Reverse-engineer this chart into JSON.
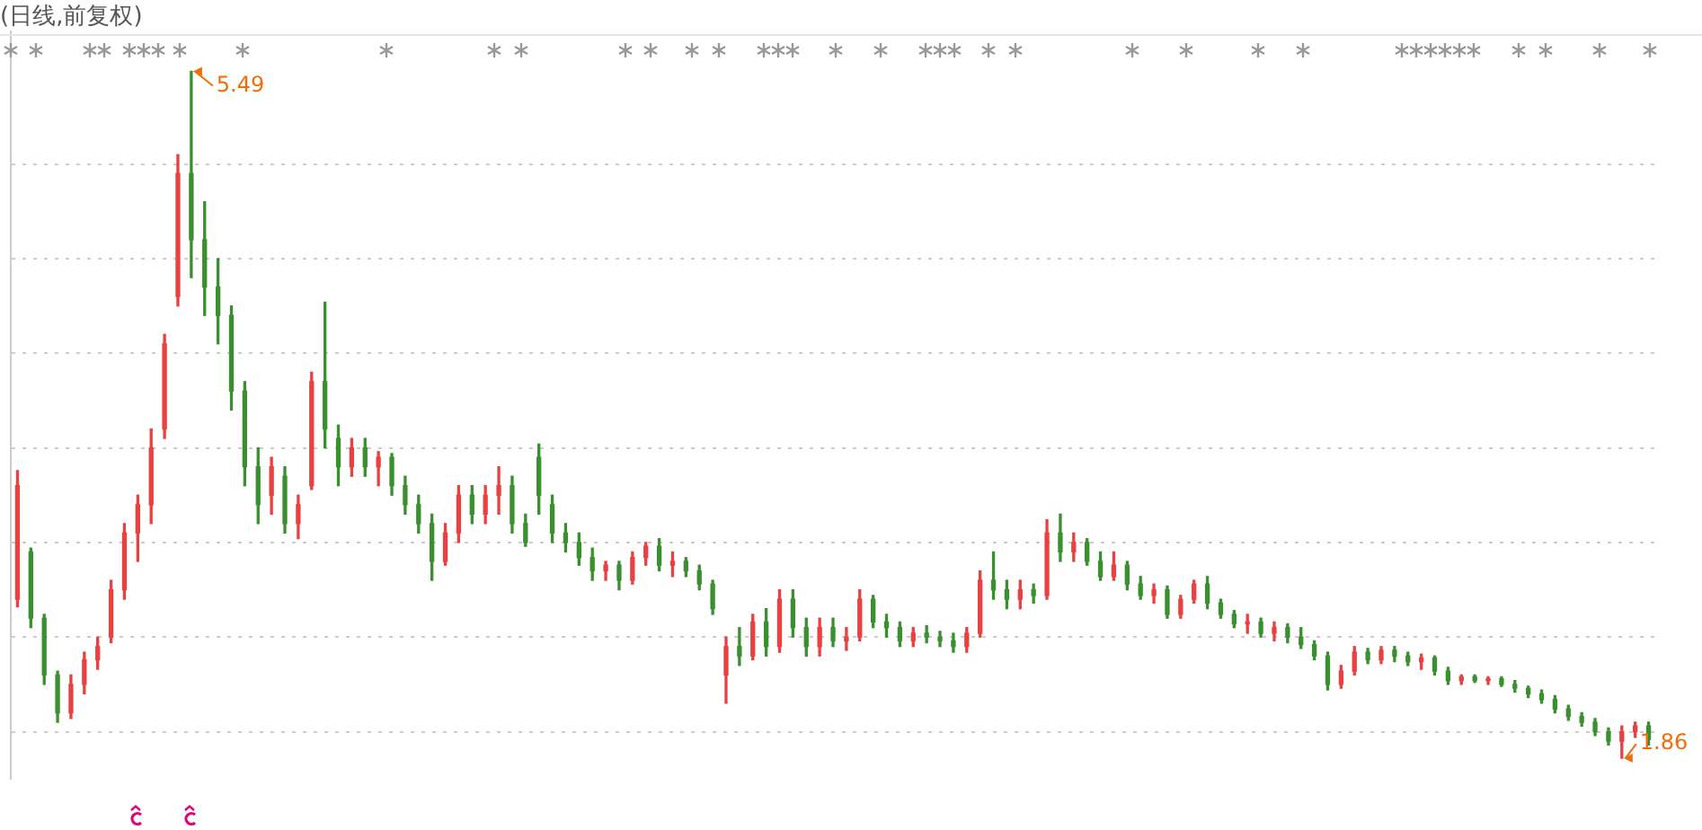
{
  "chart_data": {
    "type": "candlestick",
    "title": "(日线,前复权)",
    "ylim": [
      1.75,
      5.7
    ],
    "yticks": [
      {
        "value": 2,
        "label": null
      },
      {
        "value": 2.5,
        "label": null
      },
      {
        "value": 3,
        "label": null
      },
      {
        "value": 3.5,
        "label": null
      },
      {
        "value": 4,
        "label": null
      },
      {
        "value": 4.5,
        "label": null
      },
      {
        "value": 5,
        "label": null
      }
    ],
    "grid": "y",
    "annotations": [
      "5.49",
      "1.86"
    ],
    "categories": [
      null,
      null,
      null,
      null,
      null,
      null,
      null,
      null,
      null,
      null,
      null,
      null,
      null,
      null,
      null,
      null,
      null,
      null,
      null,
      null,
      null,
      null,
      null,
      null,
      null,
      null,
      null,
      null,
      null,
      null,
      null,
      null,
      null,
      null,
      null,
      null,
      null,
      null,
      null,
      null,
      null,
      null,
      null,
      null,
      null,
      null,
      null,
      null,
      null,
      null,
      null,
      null,
      null,
      null,
      null,
      null,
      null,
      null,
      null,
      null,
      null,
      null,
      null,
      null,
      null,
      null,
      null,
      null,
      null,
      null,
      null,
      null,
      null,
      null,
      null,
      null,
      null,
      null,
      null,
      null,
      null,
      null,
      null,
      null,
      null,
      null,
      null,
      null,
      null,
      null,
      null,
      null,
      null,
      null,
      null,
      null,
      null,
      null,
      null,
      null,
      null,
      null,
      null,
      null,
      null,
      null,
      null,
      null,
      null,
      null,
      null,
      null,
      null,
      null,
      null,
      null,
      null,
      null,
      null,
      null,
      null,
      null,
      null
    ],
    "ohlc": [
      [
        2.7,
        3.38,
        2.66,
        3.3
      ],
      [
        2.95,
        2.97,
        2.55,
        2.6
      ],
      [
        2.6,
        2.62,
        2.25,
        2.3
      ],
      [
        2.3,
        2.32,
        2.05,
        2.1
      ],
      [
        2.1,
        2.3,
        2.07,
        2.25
      ],
      [
        2.25,
        2.42,
        2.2,
        2.38
      ],
      [
        2.38,
        2.5,
        2.33,
        2.45
      ],
      [
        2.5,
        2.8,
        2.47,
        2.75
      ],
      [
        2.75,
        3.1,
        2.7,
        3.05
      ],
      [
        3.05,
        3.25,
        2.9,
        3.2
      ],
      [
        3.2,
        3.6,
        3.1,
        3.5
      ],
      [
        3.6,
        4.1,
        3.55,
        4.05
      ],
      [
        4.3,
        5.05,
        4.25,
        4.95
      ],
      [
        4.95,
        5.49,
        4.4,
        4.6
      ],
      [
        4.6,
        4.8,
        4.2,
        4.35
      ],
      [
        4.35,
        4.5,
        4.05,
        4.2
      ],
      [
        4.2,
        4.25,
        3.7,
        3.8
      ],
      [
        3.8,
        3.85,
        3.3,
        3.4
      ],
      [
        3.4,
        3.5,
        3.1,
        3.2
      ],
      [
        3.25,
        3.45,
        3.15,
        3.4
      ],
      [
        3.35,
        3.4,
        3.05,
        3.1
      ],
      [
        3.1,
        3.25,
        3.02,
        3.2
      ],
      [
        3.3,
        3.9,
        3.28,
        3.85
      ],
      [
        3.85,
        4.27,
        3.5,
        3.6
      ],
      [
        3.55,
        3.62,
        3.3,
        3.4
      ],
      [
        3.4,
        3.55,
        3.35,
        3.5
      ],
      [
        3.5,
        3.55,
        3.35,
        3.4
      ],
      [
        3.4,
        3.48,
        3.3,
        3.45
      ],
      [
        3.45,
        3.47,
        3.25,
        3.3
      ],
      [
        3.3,
        3.35,
        3.15,
        3.2
      ],
      [
        3.2,
        3.25,
        3.05,
        3.1
      ],
      [
        3.1,
        3.15,
        2.8,
        2.9
      ],
      [
        2.9,
        3.1,
        2.88,
        3.05
      ],
      [
        3.05,
        3.3,
        3.0,
        3.25
      ],
      [
        3.25,
        3.3,
        3.1,
        3.15
      ],
      [
        3.15,
        3.3,
        3.1,
        3.25
      ],
      [
        3.25,
        3.4,
        3.15,
        3.3
      ],
      [
        3.3,
        3.35,
        3.05,
        3.1
      ],
      [
        3.1,
        3.15,
        2.98,
        3.0
      ],
      [
        3.45,
        3.52,
        3.15,
        3.25
      ],
      [
        3.2,
        3.25,
        3.0,
        3.05
      ],
      [
        3.05,
        3.1,
        2.95,
        3.0
      ],
      [
        3.0,
        3.05,
        2.88,
        2.92
      ],
      [
        2.92,
        2.97,
        2.8,
        2.85
      ],
      [
        2.85,
        2.9,
        2.8,
        2.88
      ],
      [
        2.88,
        2.9,
        2.75,
        2.8
      ],
      [
        2.8,
        2.95,
        2.78,
        2.92
      ],
      [
        2.92,
        3.0,
        2.88,
        2.98
      ],
      [
        2.98,
        3.02,
        2.85,
        2.88
      ],
      [
        2.88,
        2.95,
        2.82,
        2.9
      ],
      [
        2.9,
        2.92,
        2.82,
        2.85
      ],
      [
        2.85,
        2.88,
        2.75,
        2.78
      ],
      [
        2.78,
        2.8,
        2.62,
        2.65
      ],
      [
        2.3,
        2.5,
        2.15,
        2.45
      ],
      [
        2.45,
        2.55,
        2.35,
        2.4
      ],
      [
        2.4,
        2.62,
        2.38,
        2.58
      ],
      [
        2.58,
        2.65,
        2.4,
        2.45
      ],
      [
        2.45,
        2.75,
        2.42,
        2.7
      ],
      [
        2.7,
        2.75,
        2.5,
        2.55
      ],
      [
        2.55,
        2.6,
        2.4,
        2.45
      ],
      [
        2.45,
        2.6,
        2.4,
        2.55
      ],
      [
        2.55,
        2.6,
        2.45,
        2.48
      ],
      [
        2.48,
        2.55,
        2.43,
        2.5
      ],
      [
        2.5,
        2.75,
        2.48,
        2.7
      ],
      [
        2.7,
        2.72,
        2.55,
        2.58
      ],
      [
        2.58,
        2.62,
        2.5,
        2.55
      ],
      [
        2.55,
        2.58,
        2.45,
        2.48
      ],
      [
        2.48,
        2.55,
        2.45,
        2.52
      ],
      [
        2.52,
        2.56,
        2.47,
        2.5
      ],
      [
        2.5,
        2.53,
        2.45,
        2.48
      ],
      [
        2.48,
        2.52,
        2.42,
        2.45
      ],
      [
        2.45,
        2.55,
        2.42,
        2.52
      ],
      [
        2.52,
        2.85,
        2.5,
        2.8
      ],
      [
        2.8,
        2.95,
        2.7,
        2.75
      ],
      [
        2.75,
        2.8,
        2.65,
        2.7
      ],
      [
        2.7,
        2.8,
        2.65,
        2.75
      ],
      [
        2.75,
        2.78,
        2.68,
        2.72
      ],
      [
        2.72,
        3.12,
        2.7,
        3.05
      ],
      [
        3.05,
        3.15,
        2.9,
        2.95
      ],
      [
        2.95,
        3.05,
        2.9,
        3.0
      ],
      [
        3.0,
        3.02,
        2.88,
        2.9
      ],
      [
        2.9,
        2.95,
        2.8,
        2.82
      ],
      [
        2.82,
        2.95,
        2.8,
        2.88
      ],
      [
        2.88,
        2.9,
        2.75,
        2.78
      ],
      [
        2.78,
        2.82,
        2.7,
        2.72
      ],
      [
        2.72,
        2.78,
        2.68,
        2.75
      ],
      [
        2.75,
        2.77,
        2.6,
        2.62
      ],
      [
        2.62,
        2.72,
        2.6,
        2.7
      ],
      [
        2.7,
        2.8,
        2.68,
        2.78
      ],
      [
        2.78,
        2.82,
        2.65,
        2.68
      ],
      [
        2.68,
        2.7,
        2.6,
        2.62
      ],
      [
        2.62,
        2.64,
        2.55,
        2.57
      ],
      [
        2.57,
        2.62,
        2.52,
        2.58
      ],
      [
        2.58,
        2.6,
        2.5,
        2.52
      ],
      [
        2.52,
        2.58,
        2.48,
        2.55
      ],
      [
        2.55,
        2.57,
        2.47,
        2.5
      ],
      [
        2.5,
        2.55,
        2.44,
        2.46
      ],
      [
        2.46,
        2.48,
        2.38,
        2.4
      ],
      [
        2.4,
        2.42,
        2.22,
        2.25
      ],
      [
        2.25,
        2.35,
        2.23,
        2.32
      ],
      [
        2.32,
        2.45,
        2.3,
        2.42
      ],
      [
        2.42,
        2.44,
        2.36,
        2.38
      ],
      [
        2.38,
        2.45,
        2.36,
        2.43
      ],
      [
        2.43,
        2.45,
        2.37,
        2.4
      ],
      [
        2.4,
        2.42,
        2.35,
        2.37
      ],
      [
        2.37,
        2.41,
        2.33,
        2.39
      ],
      [
        2.39,
        2.4,
        2.3,
        2.32
      ],
      [
        2.32,
        2.34,
        2.25,
        2.27
      ],
      [
        2.27,
        2.3,
        2.25,
        2.29
      ],
      [
        2.29,
        2.3,
        2.26,
        2.27
      ],
      [
        2.27,
        2.29,
        2.25,
        2.28
      ],
      [
        2.28,
        2.29,
        2.24,
        2.25
      ],
      [
        2.25,
        2.27,
        2.21,
        2.23
      ],
      [
        2.23,
        2.24,
        2.18,
        2.2
      ],
      [
        2.2,
        2.22,
        2.15,
        2.17
      ],
      [
        2.17,
        2.19,
        2.1,
        2.12
      ],
      [
        2.12,
        2.14,
        2.06,
        2.08
      ],
      [
        2.08,
        2.1,
        2.03,
        2.05
      ],
      [
        2.05,
        2.07,
        1.98,
        2.0
      ],
      [
        2.0,
        2.02,
        1.93,
        1.95
      ],
      [
        1.95,
        2.03,
        1.86,
        2.0
      ],
      [
        2.0,
        2.05,
        1.97,
        2.03
      ],
      [
        2.03,
        2.05,
        1.93,
        1.96
      ]
    ],
    "colors": [
      "#e84142",
      "#3a8f2f",
      "#3a8f2f",
      "#3a8f2f",
      "#e84142",
      "#e84142",
      "#e84142",
      "#e84142",
      "#e84142",
      "#e84142",
      "#e84142",
      "#e84142",
      "#e84142",
      "#3a8f2f",
      "#3a8f2f",
      "#3a8f2f",
      "#3a8f2f",
      "#3a8f2f",
      "#3a8f2f",
      "#e84142",
      "#3a8f2f",
      "#e84142",
      "#e84142",
      "#3a8f2f",
      "#3a8f2f",
      "#e84142",
      "#3a8f2f",
      "#e84142",
      "#3a8f2f",
      "#3a8f2f",
      "#3a8f2f",
      "#3a8f2f",
      "#e84142",
      "#e84142",
      "#3a8f2f",
      "#e84142",
      "#e84142",
      "#3a8f2f",
      "#3a8f2f",
      "#3a8f2f",
      "#3a8f2f",
      "#3a8f2f",
      "#3a8f2f",
      "#3a8f2f",
      "#e84142",
      "#3a8f2f",
      "#e84142",
      "#e84142",
      "#3a8f2f",
      "#e84142",
      "#3a8f2f",
      "#3a8f2f",
      "#3a8f2f",
      "#e84142",
      "#3a8f2f",
      "#e84142",
      "#3a8f2f",
      "#e84142",
      "#3a8f2f",
      "#3a8f2f",
      "#e84142",
      "#3a8f2f",
      "#e84142",
      "#e84142",
      "#3a8f2f",
      "#3a8f2f",
      "#3a8f2f",
      "#e84142",
      "#3a8f2f",
      "#3a8f2f",
      "#3a8f2f",
      "#e84142",
      "#e84142",
      "#3a8f2f",
      "#3a8f2f",
      "#e84142",
      "#3a8f2f",
      "#e84142",
      "#3a8f2f",
      "#e84142",
      "#3a8f2f",
      "#3a8f2f",
      "#e84142",
      "#3a8f2f",
      "#3a8f2f",
      "#e84142",
      "#3a8f2f",
      "#e84142",
      "#e84142",
      "#3a8f2f",
      "#3a8f2f",
      "#3a8f2f",
      "#e84142",
      "#3a8f2f",
      "#e84142",
      "#3a8f2f",
      "#3a8f2f",
      "#3a8f2f",
      "#3a8f2f",
      "#e84142",
      "#e84142",
      "#3a8f2f",
      "#e84142",
      "#3a8f2f",
      "#3a8f2f",
      "#e84142",
      "#3a8f2f",
      "#3a8f2f",
      "#e84142",
      "#3a8f2f",
      "#e84142",
      "#3a8f2f",
      "#3a8f2f",
      "#3a8f2f",
      "#3a8f2f",
      "#3a8f2f",
      "#3a8f2f",
      "#3a8f2f",
      "#3a8f2f",
      "#3a8f2f",
      "#e84142",
      "#e84142",
      "#3a8f2f"
    ]
  }
}
